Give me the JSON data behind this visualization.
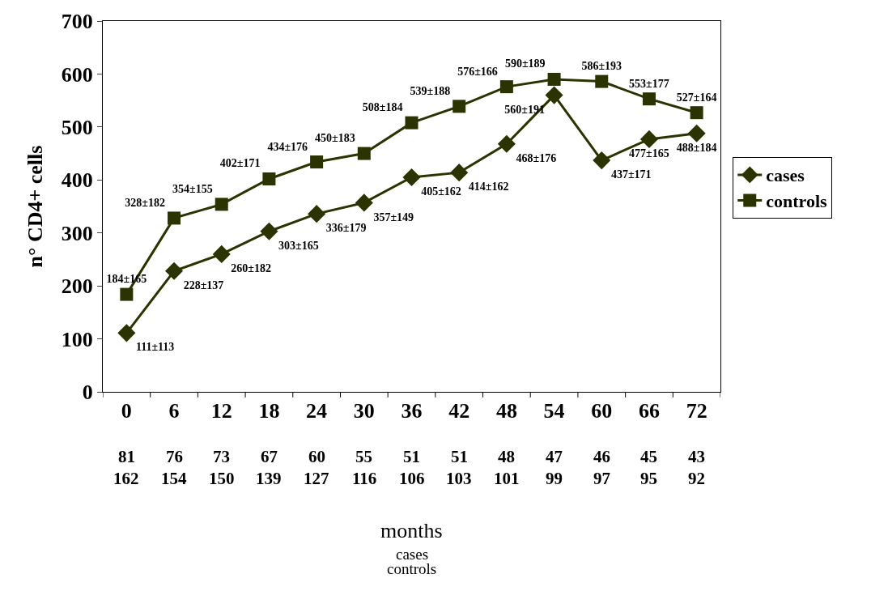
{
  "chart_data": {
    "type": "line",
    "categories": [
      "0",
      "6",
      "12",
      "18",
      "24",
      "30",
      "36",
      "42",
      "48",
      "54",
      "60",
      "66",
      "72"
    ],
    "ylabel": "n° CD4+ cells",
    "ylim": [
      0,
      700
    ],
    "yticks": [
      0,
      100,
      200,
      300,
      400,
      500,
      600,
      700
    ],
    "series": [
      {
        "name": "cases",
        "color": "#2b3300",
        "marker": "diamond",
        "values": [
          111,
          228,
          260,
          303,
          336,
          357,
          405,
          414,
          468,
          560,
          437,
          477,
          488
        ],
        "value_labels": [
          "111±113",
          "228±137",
          "260±182",
          "303±165",
          "336±179",
          "357±149",
          "405±162",
          "414±162",
          "468±176",
          "560±191",
          "437±171",
          "477±165",
          "488±184"
        ]
      },
      {
        "name": "controls",
        "color": "#2b3300",
        "marker": "square",
        "values": [
          184,
          328,
          354,
          402,
          434,
          450,
          508,
          539,
          576,
          590,
          586,
          553,
          527
        ],
        "value_labels": [
          "184±165",
          "328±182",
          "354±155",
          "402±171",
          "434±176",
          "450±183",
          "508±184",
          "539±188",
          "576±166",
          "590±189",
          "586±193",
          "553±177",
          "527±164"
        ]
      }
    ],
    "annotations": [
      "81 76 73 67 60 55 51 51 48 47 46 45 43",
      "162 154 150 139 127 116 106 103 101 99 97 95 92",
      "months",
      "cases",
      "controls"
    ],
    "legend": "right"
  }
}
